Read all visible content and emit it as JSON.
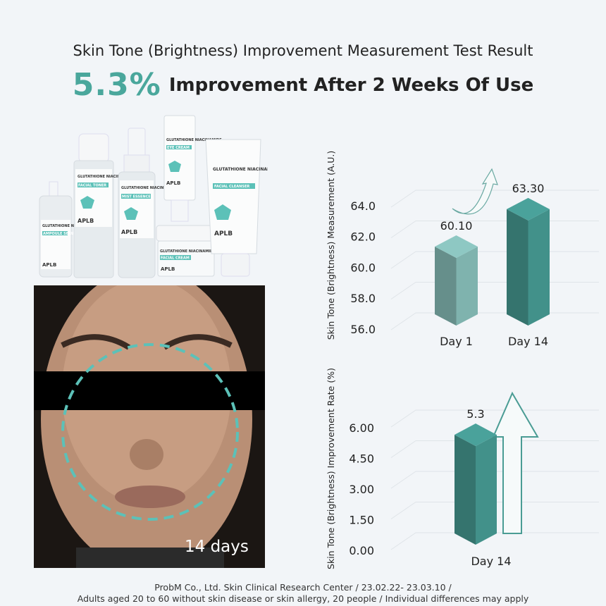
{
  "header": {
    "title": "Skin Tone (Brightness) Improvement Measurement Test Result",
    "highlight_value": "5.3%",
    "highlight_text": "Improvement After 2 Weeks Of Use"
  },
  "products": {
    "brand": "APLB",
    "line": "GLUTATHIONE NIACINAMIDE",
    "items": [
      {
        "name": "AMPOULE SERUM"
      },
      {
        "name": "FACIAL TONER"
      },
      {
        "name": "MIST ESSENCE"
      },
      {
        "name": "EYE CREAM"
      },
      {
        "name": "FACIAL CREAM"
      },
      {
        "name": "FACIAL CLEANSER"
      }
    ]
  },
  "photo": {
    "caption": "14 days"
  },
  "chart_data": [
    {
      "type": "bar",
      "ylabel": "Skin Tone (Brightness) Measurement (A.U.)",
      "categories": [
        "Day 1",
        "Day 14"
      ],
      "values": [
        60.1,
        63.3
      ],
      "value_labels": [
        "60.10",
        "63.30"
      ],
      "yticks": [
        "56.0",
        "58.0",
        "60.0",
        "62.0",
        "64.0"
      ],
      "ylim": [
        56,
        64
      ],
      "grid": true,
      "colors": [
        "#7fb3ae",
        "#42918a"
      ]
    },
    {
      "type": "bar",
      "ylabel": "Skin Tone (Brightness) Improvement Rate (%)",
      "categories": [
        "Day 14"
      ],
      "values": [
        5.3
      ],
      "value_labels": [
        "5.3"
      ],
      "yticks": [
        "0.00",
        "1.50",
        "3.00",
        "4.50",
        "6.00"
      ],
      "ylim": [
        0,
        6
      ],
      "grid": true,
      "colors": [
        "#42918a"
      ]
    }
  ],
  "footer": {
    "line1": "ProbM Co., Ltd. Skin Clinical Research Center / 23.02.22- 23.03.10 /",
    "line2": "Adults aged 20 to 60 without skin disease or skin allergy, 20 people / Individual differences may apply"
  },
  "colors": {
    "accent": "#4aa79c",
    "background": "#f2f5f8"
  }
}
